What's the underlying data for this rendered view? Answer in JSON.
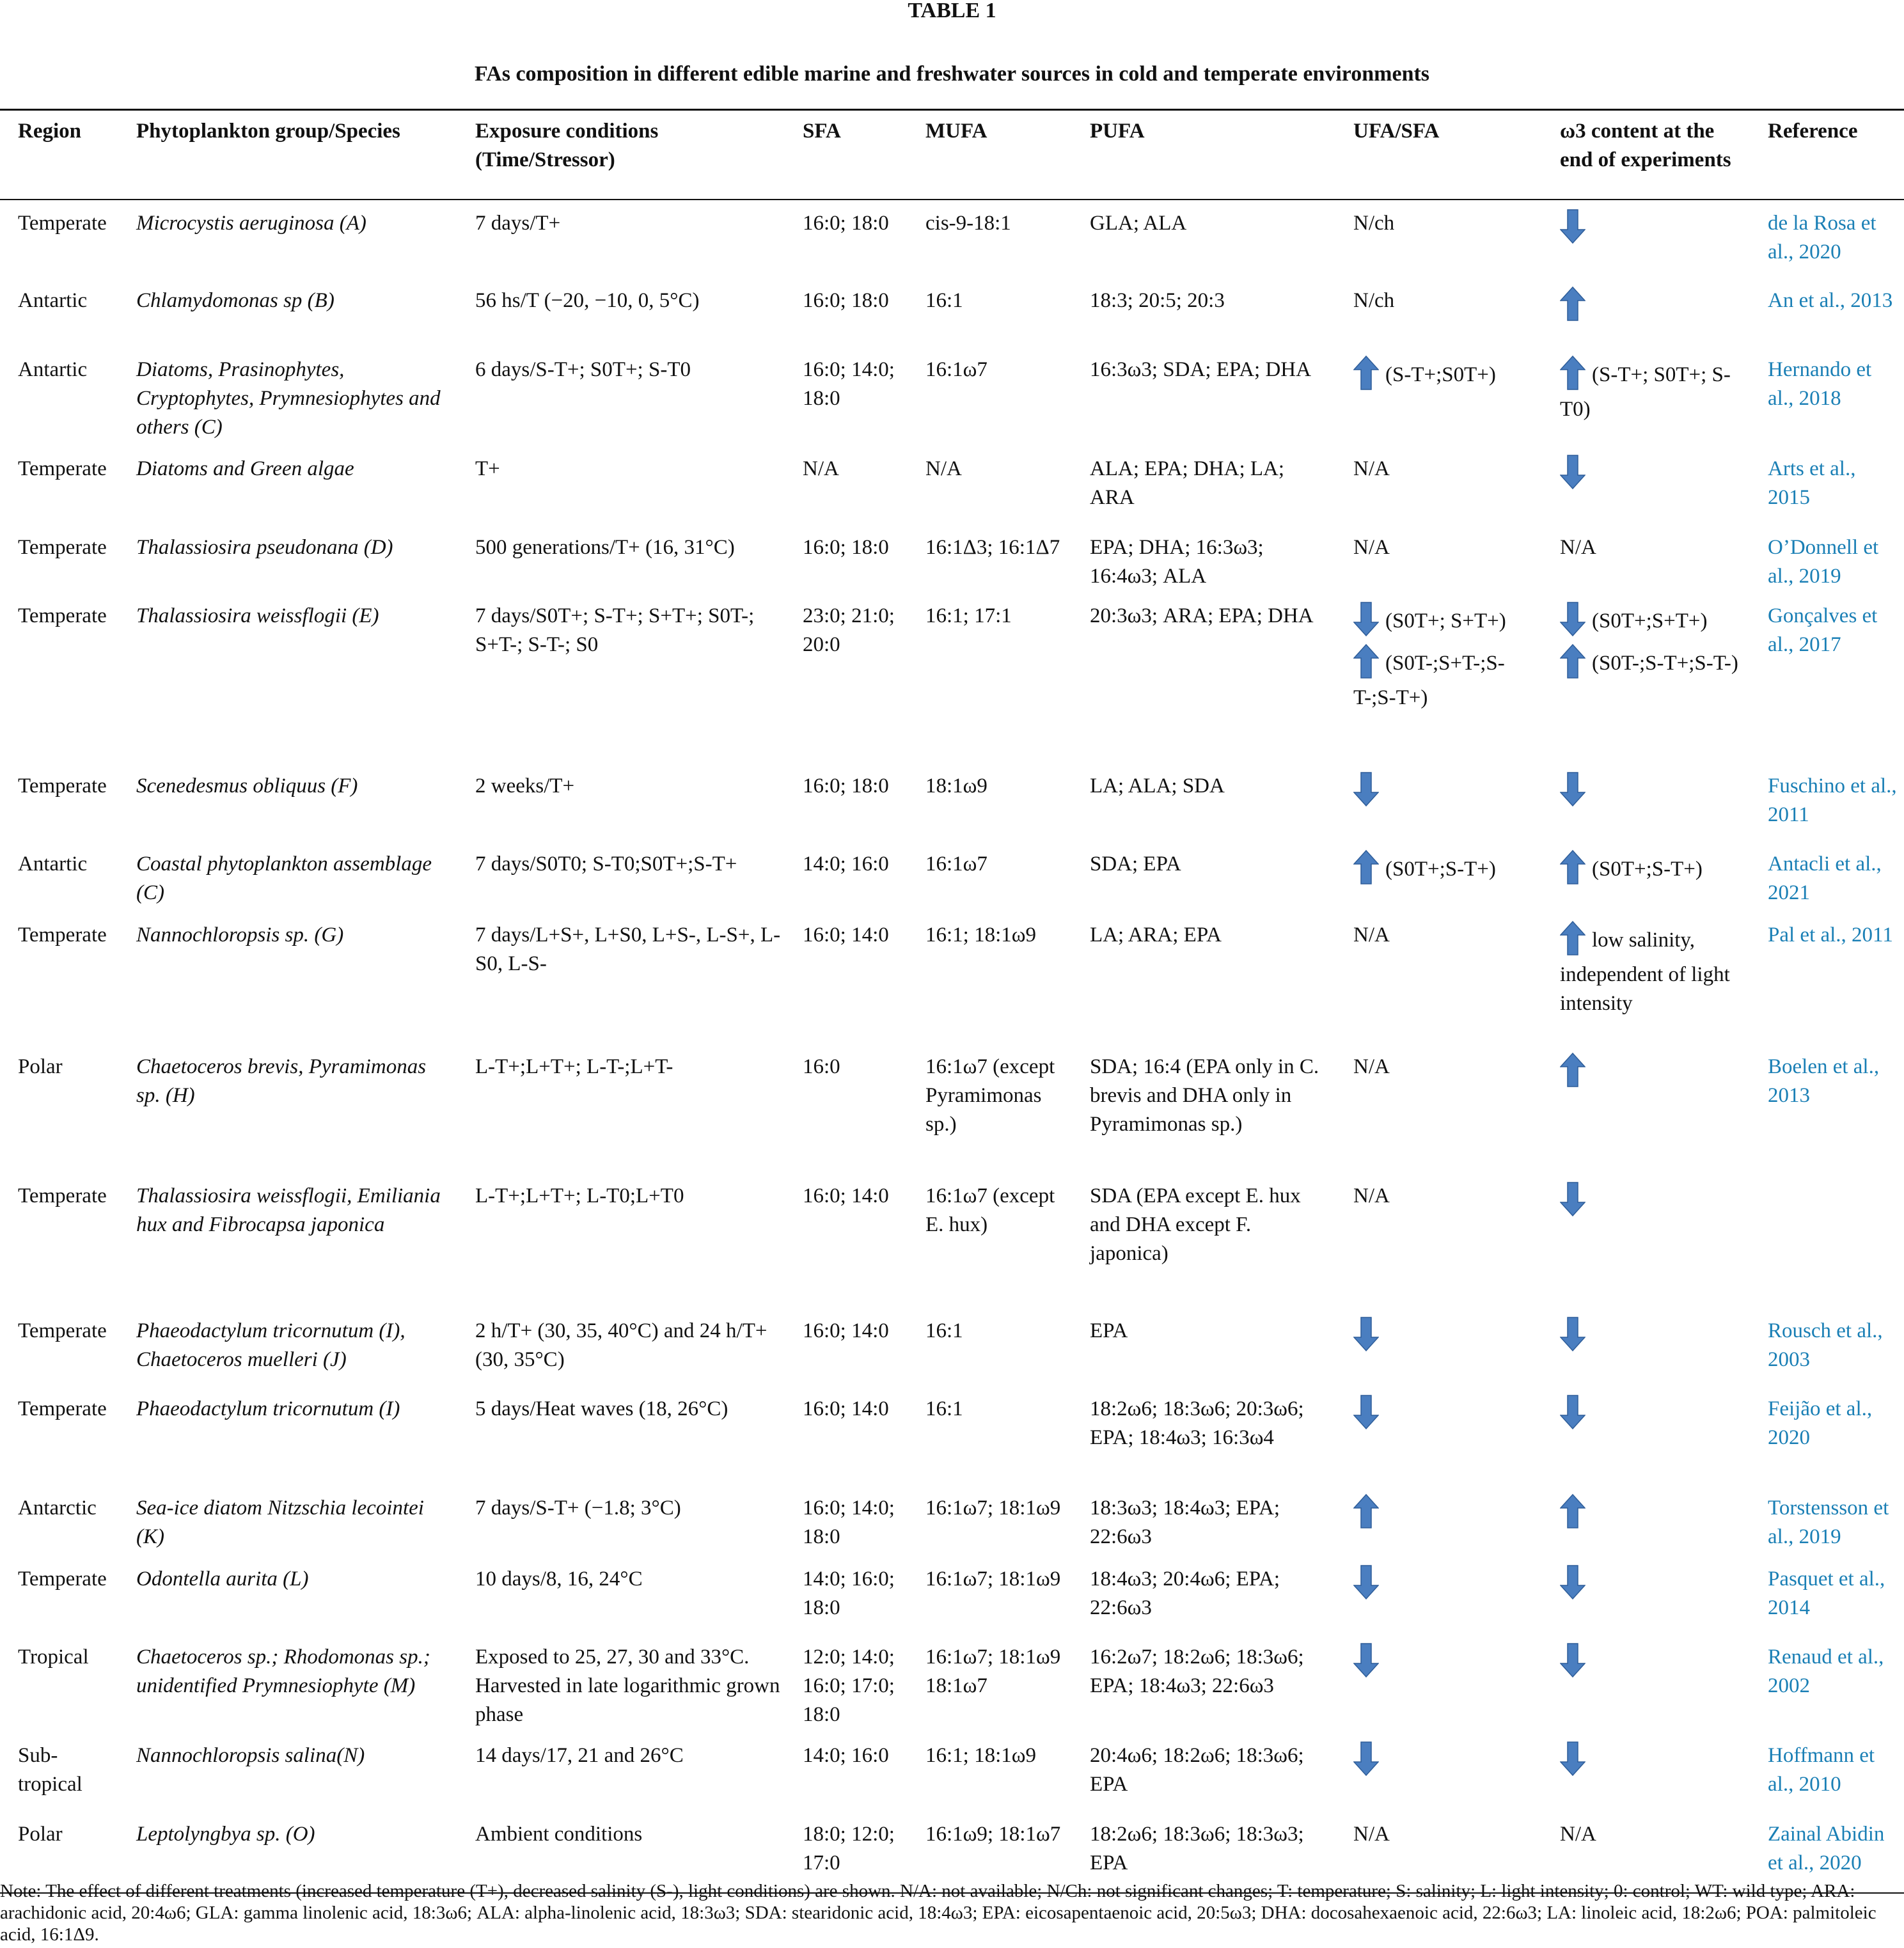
{
  "title": "TABLE 1",
  "caption": "FAs composition in different edible marine and freshwater sources in cold and temperate environments",
  "columns": [
    "Region",
    "Phytoplankton group/Species",
    "Exposure conditions (Time/Stressor)",
    "SFA",
    "MUFA",
    "PUFA",
    "UFA/SFA",
    "ω3 content at the end of experiments",
    "Reference"
  ],
  "rows": [
    {
      "region": "Temperate",
      "species": "Microcystis aeruginosa (A)",
      "exposure": "7 days/T+",
      "sfa": "16:0; 18:0",
      "mufa": "cis-9-18:1",
      "pufa": "GLA; ALA",
      "ufa_sfa": [
        {
          "text": "N/ch"
        }
      ],
      "omega3": [
        {
          "arrow": "down"
        }
      ],
      "reference": "de la Rosa et al., 2020"
    },
    {
      "region": "Antartic",
      "species": "Chlamydomonas sp (B)",
      "exposure": "56 hs/T (−20, −10, 0, 5°C)",
      "sfa": "16:0; 18:0",
      "mufa": "16:1",
      "pufa": "18:3; 20:5; 20:3",
      "ufa_sfa": [
        {
          "text": "N/ch"
        }
      ],
      "omega3": [
        {
          "arrow": "up"
        }
      ],
      "reference": "An et al., 2013"
    },
    {
      "region": "Antartic",
      "species": "Diatoms, Prasinophytes, Cryptophytes, Prymnesiophytes and others (C)",
      "exposure": "6 days/S-T+; S0T+; S-T0",
      "sfa": "16:0; 14:0; 18:0",
      "mufa": "16:1ω7",
      "pufa": "16:3ω3; SDA; EPA; DHA",
      "ufa_sfa": [
        {
          "arrow": "up",
          "text": "(S-T+;S0T+)"
        }
      ],
      "omega3": [
        {
          "arrow": "up",
          "text": "(S-T+; S0T+; S-T0)"
        }
      ],
      "reference": "Hernando et al., 2018"
    },
    {
      "region": "Temperate",
      "species": "Diatoms and Green algae",
      "exposure": "T+",
      "sfa": "N/A",
      "mufa": "N/A",
      "pufa": "ALA; EPA; DHA; LA; ARA",
      "ufa_sfa": [
        {
          "text": "N/A"
        }
      ],
      "omega3": [
        {
          "arrow": "down"
        }
      ],
      "reference": "Arts et al., 2015"
    },
    {
      "region": "Temperate",
      "species": "Thalassiosira pseudonana (D)",
      "exposure": "500 generations/T+ (16, 31°C)",
      "sfa": "16:0; 18:0",
      "mufa": "16:1Δ3; 16:1Δ7",
      "pufa": "EPA; DHA; 16:3ω3; 16:4ω3; ALA",
      "ufa_sfa": [
        {
          "text": "N/A"
        }
      ],
      "omega3": [
        {
          "text": "N/A"
        }
      ],
      "reference": "O’Donnell et al., 2019"
    },
    {
      "region": "Temperate",
      "species": "Thalassiosira weissflogii (E)",
      "exposure": "7 days/S0T+; S-T+; S+T+; S0T-; S+T-; S-T-; S0",
      "sfa": "23:0; 21:0; 20:0",
      "mufa": "16:1; 17:1",
      "pufa": "20:3ω3; ARA; EPA; DHA",
      "ufa_sfa": [
        {
          "arrow": "down",
          "text": "(S0T+; S+T+)"
        },
        {
          "arrow": "up",
          "text": "(S0T-;S+T-;S-T-;S-T+)"
        }
      ],
      "omega3": [
        {
          "arrow": "down",
          "text": "(S0T+;S+T+)"
        },
        {
          "arrow": "up",
          "text": "(S0T-;S-T+;S-T-)"
        }
      ],
      "reference": "Gonçalves et al., 2017"
    },
    {
      "region": "Temperate",
      "species": "Scenedesmus obliquus (F)",
      "exposure": "2 weeks/T+",
      "sfa": "16:0; 18:0",
      "mufa": "18:1ω9",
      "pufa": "LA; ALA; SDA",
      "ufa_sfa": [
        {
          "arrow": "down"
        }
      ],
      "omega3": [
        {
          "arrow": "down"
        }
      ],
      "reference": "Fuschino et al., 2011"
    },
    {
      "region": "Antartic",
      "species": "Coastal phytoplankton assemblage (C)",
      "exposure": "7 days/S0T0; S-T0;S0T+;S-T+",
      "sfa": "14:0; 16:0",
      "mufa": "16:1ω7",
      "pufa": "SDA; EPA",
      "ufa_sfa": [
        {
          "arrow": "up",
          "text": "(S0T+;S-T+)"
        }
      ],
      "omega3": [
        {
          "arrow": "up",
          "text": "(S0T+;S-T+)"
        }
      ],
      "reference": "Antacli et al., 2021"
    },
    {
      "region": "Temperate",
      "species": "Nannochloropsis sp. (G)",
      "exposure": "7 days/L+S+, L+S0, L+S-, L-S+, L-S0, L-S-",
      "sfa": "16:0; 14:0",
      "mufa": "16:1; 18:1ω9",
      "pufa": "LA; ARA; EPA",
      "ufa_sfa": [
        {
          "text": "N/A"
        }
      ],
      "omega3": [
        {
          "arrow": "up",
          "text": "low salinity, independent of light intensity"
        }
      ],
      "reference": "Pal et al., 2011"
    },
    {
      "region": "Polar",
      "species": "Chaetoceros brevis, Pyramimonas sp. (H)",
      "exposure": "L-T+;L+T+; L-T-;L+T-",
      "sfa": "16:0",
      "mufa": "16:1ω7 (except Pyramimonas sp.)",
      "pufa": "SDA; 16:4 (EPA only in C. brevis and DHA only in Pyramimonas sp.)",
      "ufa_sfa": [
        {
          "text": "N/A"
        }
      ],
      "omega3": [
        {
          "arrow": "up"
        }
      ],
      "reference": "Boelen et al., 2013"
    },
    {
      "region": "Temperate",
      "species": "Thalassiosira weissflogii, Emiliania hux and Fibrocapsa japonica",
      "exposure": "L-T+;L+T+; L-T0;L+T0",
      "sfa": "16:0; 14:0",
      "mufa": "16:1ω7 (except E. hux)",
      "pufa": "SDA (EPA except E. hux and DHA except F. japonica)",
      "ufa_sfa": [
        {
          "text": "N/A"
        }
      ],
      "omega3": [
        {
          "arrow": "down"
        }
      ],
      "reference": ""
    },
    {
      "region": "Temperate",
      "species": "Phaeodactylum tricornutum (I), Chaetoceros muelleri (J)",
      "exposure": "2 h/T+ (30, 35, 40°C) and 24 h/T+ (30, 35°C)",
      "sfa": "16:0; 14:0",
      "mufa": "16:1",
      "pufa": "EPA",
      "ufa_sfa": [
        {
          "arrow": "down"
        }
      ],
      "omega3": [
        {
          "arrow": "down"
        }
      ],
      "reference": "Rousch et al., 2003"
    },
    {
      "region": "Temperate",
      "species": "Phaeodactylum tricornutum (I)",
      "exposure": "5 days/Heat waves (18, 26°C)",
      "sfa": "16:0; 14:0",
      "mufa": "16:1",
      "pufa": "18:2ω6; 18:3ω6; 20:3ω6; EPA; 18:4ω3; 16:3ω4",
      "ufa_sfa": [
        {
          "arrow": "down"
        }
      ],
      "omega3": [
        {
          "arrow": "down"
        }
      ],
      "reference": "Feijão et al., 2020"
    },
    {
      "region": "Antarctic",
      "species": "Sea-ice diatom Nitzschia lecointei (K)",
      "exposure": "7 days/S-T+ (−1.8; 3°C)",
      "sfa": "16:0; 14:0; 18:0",
      "mufa": "16:1ω7; 18:1ω9",
      "pufa": "18:3ω3; 18:4ω3; EPA; 22:6ω3",
      "ufa_sfa": [
        {
          "arrow": "up"
        }
      ],
      "omega3": [
        {
          "arrow": "up"
        }
      ],
      "reference": "Torstensson et al., 2019"
    },
    {
      "region": "Temperate",
      "species": "Odontella aurita (L)",
      "exposure": "10 days/8, 16, 24°C",
      "sfa": "14:0; 16:0; 18:0",
      "mufa": "16:1ω7; 18:1ω9",
      "pufa": "18:4ω3; 20:4ω6; EPA; 22:6ω3",
      "ufa_sfa": [
        {
          "arrow": "down"
        }
      ],
      "omega3": [
        {
          "arrow": "down"
        }
      ],
      "reference": "Pasquet et al., 2014"
    },
    {
      "region": "Tropical",
      "species": "Chaetoceros sp.; Rhodomonas sp.; unidentified Prymnesiophyte (M)",
      "exposure": "Exposed to 25, 27, 30 and 33°C. Harvested in late logarithmic grown phase",
      "sfa": "12:0; 14:0; 16:0; 17:0; 18:0",
      "mufa": "16:1ω7; 18:1ω9 18:1ω7",
      "pufa": "16:2ω7; 18:2ω6; 18:3ω6; EPA; 18:4ω3; 22:6ω3",
      "ufa_sfa": [
        {
          "arrow": "down"
        }
      ],
      "omega3": [
        {
          "arrow": "down"
        }
      ],
      "reference": "Renaud et al., 2002"
    },
    {
      "region": "Sub-tropical",
      "species": "Nannochloropsis salina(N)",
      "exposure": "14 days/17, 21 and 26°C",
      "sfa": "14:0; 16:0",
      "mufa": "16:1; 18:1ω9",
      "pufa": "20:4ω6; 18:2ω6; 18:3ω6; EPA",
      "ufa_sfa": [
        {
          "arrow": "down"
        }
      ],
      "omega3": [
        {
          "arrow": "down"
        }
      ],
      "reference": "Hoffmann et al., 2010"
    },
    {
      "region": "Polar",
      "species": "Leptolyngbya sp. (O)",
      "exposure": "Ambient conditions",
      "sfa": "18:0; 12:0; 17:0",
      "mufa": "16:1ω9; 18:1ω7",
      "pufa": "18:2ω6; 18:3ω6; 18:3ω3; EPA",
      "ufa_sfa": [
        {
          "text": "N/A"
        }
      ],
      "omega3": [
        {
          "text": "N/A"
        }
      ],
      "reference": "Zainal Abidin et al., 2020"
    }
  ],
  "note": "Note: The effect of different treatments (increased temperature (T+), decreased salinity (S-), light conditions) are shown. N/A: not available; N/Ch: not significant changes; T: temperature; S: salinity; L: light intensity; 0: control; WT: wild type; ARA: arachidonic acid, 20:4ω6; GLA: gamma linolenic acid, 18:3ω6; ALA: alpha-linolenic acid, 18:3ω3; SDA: stearidonic acid, 18:4ω3; EPA: eicosapentaenoic acid, 20:5ω3; DHA: docosahexaenoic acid, 22:6ω3; LA: linoleic acid, 18:2ω6; POA: palmitoleic acid, 16:1Δ9.",
  "colors": {
    "arrow_fill": "#4a7ec0",
    "arrow_stroke": "#2e5d99",
    "reference_link": "#1a7fb5",
    "text": "#111111"
  }
}
